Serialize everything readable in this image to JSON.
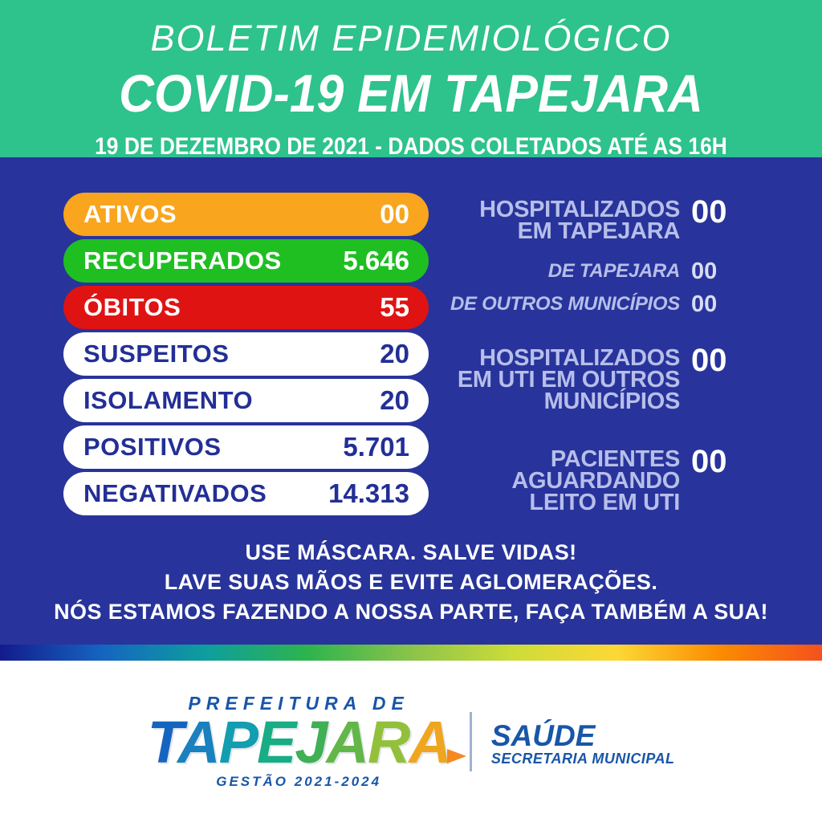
{
  "header": {
    "kicker": "BOLETIM EPIDEMIOLÓGICO",
    "title": "COVID-19 EM TAPEJARA",
    "date_line": "19 DE DEZEMBRO DE 2021 - DADOS COLETADOS ATÉ AS 16H"
  },
  "stats_pills": [
    {
      "label": "ATIVOS",
      "value": "00",
      "bg": "#F9A51D",
      "fg": "#FFFFFF"
    },
    {
      "label": "RECUPERADOS",
      "value": "5.646",
      "bg": "#1FBF22",
      "fg": "#FFFFFF"
    },
    {
      "label": "ÓBITOS",
      "value": "55",
      "bg": "#E01313",
      "fg": "#FFFFFF"
    },
    {
      "label": "SUSPEITOS",
      "value": "20",
      "bg": "#FFFFFF",
      "fg": "#232F96"
    },
    {
      "label": "ISOLAMENTO",
      "value": "20",
      "bg": "#FFFFFF",
      "fg": "#232F96"
    },
    {
      "label": "POSITIVOS",
      "value": "5.701",
      "bg": "#FFFFFF",
      "fg": "#232F96"
    },
    {
      "label": "NEGATIVADOS",
      "value": "14.313",
      "bg": "#FFFFFF",
      "fg": "#232F96"
    }
  ],
  "hospital_stats": [
    {
      "lines": [
        "HOSPITALIZADOS",
        "EM TAPEJARA"
      ],
      "value": "00",
      "style": "big"
    },
    {
      "lines": [
        "DE TAPEJARA"
      ],
      "value": "00",
      "style": "sub"
    },
    {
      "lines": [
        "DE OUTROS MUNICÍPIOS"
      ],
      "value": "00",
      "style": "sub"
    },
    {
      "lines": [
        "HOSPITALIZADOS",
        "EM UTI EM OUTROS",
        "MUNICÍPIOS"
      ],
      "value": "00",
      "style": "big"
    },
    {
      "lines": [
        "PACIENTES",
        "AGUARDANDO",
        "LEITO EM UTI"
      ],
      "value": "00",
      "style": "big"
    }
  ],
  "messages": [
    "USE MÁSCARA. SALVE VIDAS!",
    "LAVE SUAS MÃOS E EVITE AGLOMERAÇÕES.",
    "NÓS ESTAMOS FAZENDO A NOSSA PARTE, FAÇA TAMBÉM A SUA!"
  ],
  "footer": {
    "prefeitura": "PREFEITURA DE",
    "city": "TAPEJARA",
    "gestao": "GESTÃO 2021-2024",
    "dept": "SAÚDE",
    "dept_sub": "SECRETARIA MUNICIPAL"
  },
  "colors": {
    "header_bg": "#2EC28D",
    "body_bg": "#28349B",
    "lavender": "#B7BEE9",
    "sub_value": "#D8DCF4",
    "footer_blue": "#1856A8",
    "divider": "#9FB3D1",
    "arrow": "#F6881F",
    "white": "#FFFFFF",
    "rainbow_stops": [
      "#141B8C",
      "#1565C0",
      "#0E9E9E",
      "#2EB44D",
      "#8BC34A",
      "#CDDC39",
      "#FDD835",
      "#FB8C00",
      "#F4511E"
    ],
    "logo_letter_colors": [
      "#1565C0",
      "#1B80BE",
      "#129DB0",
      "#18AD85",
      "#3FB054",
      "#62B748",
      "#93C03B",
      "#EFA51F"
    ]
  }
}
